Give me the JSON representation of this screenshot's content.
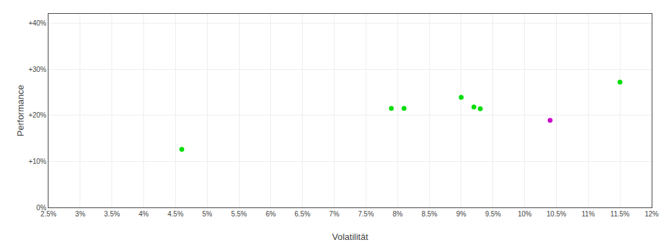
{
  "chart_data": {
    "type": "scatter",
    "xlabel": "Volatilität",
    "ylabel": "Performance",
    "xlim": [
      0.025,
      0.12
    ],
    "ylim": [
      0.0,
      0.42
    ],
    "xticks": [
      {
        "value": 0.025,
        "label": "2.5%"
      },
      {
        "value": 0.03,
        "label": "3%"
      },
      {
        "value": 0.035,
        "label": "3.5%"
      },
      {
        "value": 0.04,
        "label": "4%"
      },
      {
        "value": 0.045,
        "label": "4.5%"
      },
      {
        "value": 0.05,
        "label": "5%"
      },
      {
        "value": 0.055,
        "label": "5.5%"
      },
      {
        "value": 0.06,
        "label": "6%"
      },
      {
        "value": 0.065,
        "label": "6.5%"
      },
      {
        "value": 0.07,
        "label": "7%"
      },
      {
        "value": 0.075,
        "label": "7.5%"
      },
      {
        "value": 0.08,
        "label": "8%"
      },
      {
        "value": 0.085,
        "label": "8.5%"
      },
      {
        "value": 0.09,
        "label": "9%"
      },
      {
        "value": 0.095,
        "label": "9.5%"
      },
      {
        "value": 0.1,
        "label": "10%"
      },
      {
        "value": 0.105,
        "label": "10.5%"
      },
      {
        "value": 0.11,
        "label": "11%"
      },
      {
        "value": 0.115,
        "label": "11.5%"
      },
      {
        "value": 0.12,
        "label": "12%"
      }
    ],
    "yticks": [
      {
        "value": 0.0,
        "label": "0%"
      },
      {
        "value": 0.1,
        "label": "+10%"
      },
      {
        "value": 0.2,
        "label": "+20%"
      },
      {
        "value": 0.3,
        "label": "+30%"
      },
      {
        "value": 0.4,
        "label": "+40%"
      }
    ],
    "grid": true,
    "series": [
      {
        "color": "#00dd00",
        "x": [
          0.046,
          0.079,
          0.081,
          0.09,
          0.092,
          0.093,
          0.115
        ],
        "values": [
          0.126,
          0.215,
          0.215,
          0.239,
          0.218,
          0.214,
          0.272
        ]
      },
      {
        "color": "#cc00cc",
        "x": [
          0.104
        ],
        "values": [
          0.189
        ]
      }
    ]
  }
}
